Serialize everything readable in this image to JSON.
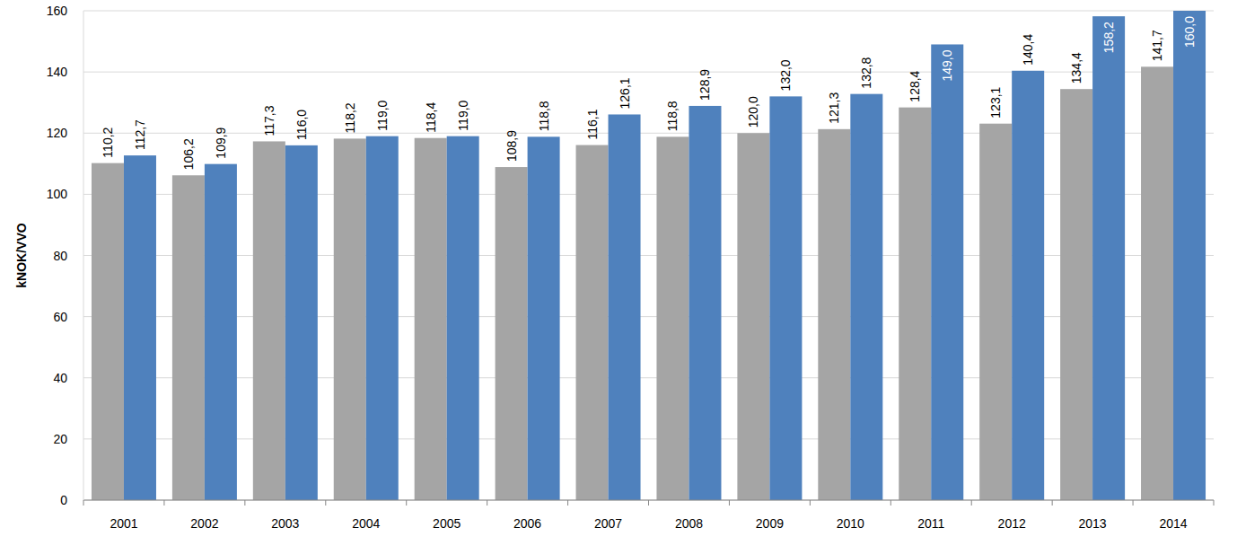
{
  "chart_data": {
    "type": "bar",
    "y_label": "kNOK/VVO",
    "categories": [
      "2001",
      "2002",
      "2003",
      "2004",
      "2005",
      "2006",
      "2007",
      "2008",
      "2009",
      "2010",
      "2011",
      "2012",
      "2013",
      "2014"
    ],
    "series": [
      {
        "color": "#a5a5a5",
        "values": [
          110.2,
          106.2,
          117.3,
          118.2,
          118.4,
          108.9,
          116.1,
          118.8,
          120.0,
          121.3,
          128.4,
          123.1,
          134.4,
          141.7
        ],
        "value_labels": [
          "110,2",
          "106,2",
          "117,3",
          "118,2",
          "118,4",
          "108,9",
          "116,1",
          "118,8",
          "120,0",
          "121,3",
          "128,4",
          "123,1",
          "134,4",
          "141,7"
        ]
      },
      {
        "color": "#4f81bd",
        "values": [
          112.7,
          109.9,
          116.0,
          119.0,
          119.0,
          118.8,
          126.1,
          128.9,
          132.0,
          132.8,
          149.0,
          140.4,
          158.2,
          160.0
        ],
        "value_labels": [
          "112,7",
          "109,9",
          "116,0",
          "119,0",
          "119,0",
          "118,8",
          "126,1",
          "128,9",
          "132,0",
          "132,8",
          "149,0",
          "140,4",
          "158,2",
          "160,0"
        ]
      }
    ],
    "ylim": [
      0,
      160
    ],
    "yticks": [
      0,
      20,
      40,
      60,
      80,
      100,
      120,
      140,
      160
    ],
    "grid": true,
    "data_labels": true
  }
}
